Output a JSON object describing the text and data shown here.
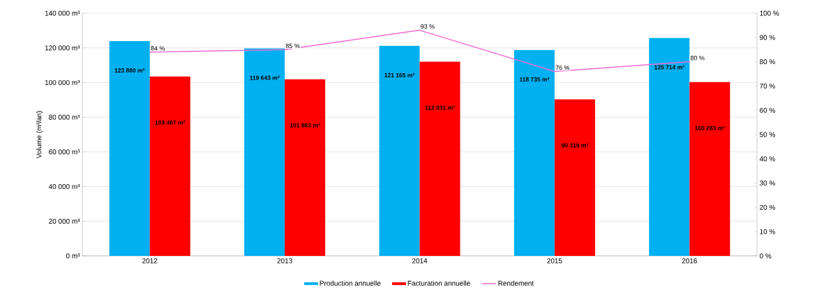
{
  "chart_data": {
    "type": "bar",
    "ylabel": "Volume (m³/an)",
    "categories": [
      "2012",
      "2013",
      "2014",
      "2015",
      "2016"
    ],
    "series": [
      {
        "name": "Production annuelle",
        "color": "#00b0f0",
        "values": [
          123880,
          119643,
          121165,
          118735,
          125714
        ],
        "value_labels": [
          "123 880 m³",
          "119 643 m³",
          "121 165 m³",
          "118 735 m³",
          "125 714 m³"
        ]
      },
      {
        "name": "Facturation annuelle",
        "color": "#ff0000",
        "values": [
          103467,
          101883,
          112031,
          90319,
          100283
        ],
        "value_labels": [
          "103 467 m³",
          "101 883 m³",
          "112 031 m³",
          "90 319 m³",
          "100 283 m³"
        ]
      },
      {
        "name": "Rendement",
        "type": "line",
        "axis": "y2",
        "color": "#f06cd2",
        "values": [
          84,
          85,
          93,
          76,
          80
        ],
        "value_labels": [
          "84 %",
          "85 %",
          "93 %",
          "76 %",
          "80 %"
        ]
      }
    ],
    "ylim": [
      0,
      140000
    ],
    "yticks": [
      {
        "value": 0,
        "label": "0 m³"
      },
      {
        "value": 20000,
        "label": "20 000 m³"
      },
      {
        "value": 40000,
        "label": "40 000 m³"
      },
      {
        "value": 60000,
        "label": "60 000 m³"
      },
      {
        "value": 80000,
        "label": "80 000 m³"
      },
      {
        "value": 100000,
        "label": "100 000 m³"
      },
      {
        "value": 120000,
        "label": "120 000 m³"
      },
      {
        "value": 140000,
        "label": "140 000 m³"
      }
    ],
    "y2lim": [
      0,
      100
    ],
    "y2ticks": [
      {
        "value": 0,
        "label": "0 %"
      },
      {
        "value": 10,
        "label": "10 %"
      },
      {
        "value": 20,
        "label": "20 %"
      },
      {
        "value": 30,
        "label": "30 %"
      },
      {
        "value": 40,
        "label": "40 %"
      },
      {
        "value": 50,
        "label": "50 %"
      },
      {
        "value": 60,
        "label": "60 %"
      },
      {
        "value": 70,
        "label": "70 %"
      },
      {
        "value": 80,
        "label": "80 %"
      },
      {
        "value": 90,
        "label": "90 %"
      },
      {
        "value": 100,
        "label": "100 %"
      }
    ],
    "grid": "y",
    "legend": "bottom"
  }
}
